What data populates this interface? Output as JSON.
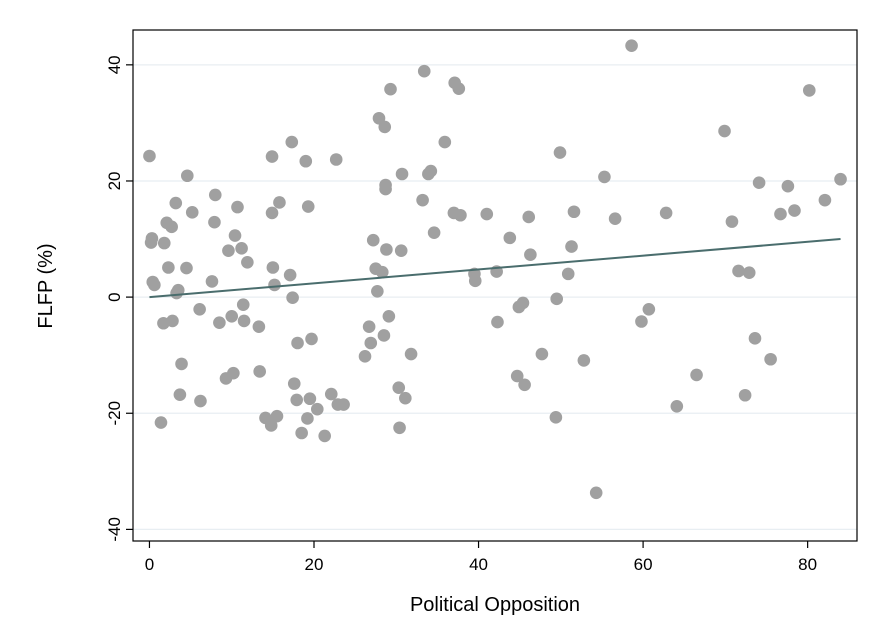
{
  "chart_data": {
    "type": "scatter",
    "title": "",
    "xlabel": "Political Opposition",
    "ylabel": "FLFP (%)",
    "xlim": [
      -2,
      86
    ],
    "ylim": [
      -42,
      46
    ],
    "x_ticks": [
      0,
      20,
      40,
      60,
      80
    ],
    "y_ticks": [
      -40,
      -20,
      0,
      20,
      40
    ],
    "grid": true,
    "colors": {
      "marker": "#a0a0a0",
      "fit_line": "#4a6d6d",
      "grid": "#e8eef2",
      "frame": "#000000"
    },
    "fit_line": {
      "x": [
        0,
        84
      ],
      "y": [
        0,
        10
      ]
    },
    "points": [
      [
        0,
        24.3
      ],
      [
        0.2,
        9.4
      ],
      [
        0.3,
        10.1
      ],
      [
        0.4,
        2.6
      ],
      [
        0.6,
        2.1
      ],
      [
        1.4,
        -21.6
      ],
      [
        1.7,
        -4.5
      ],
      [
        1.8,
        9.3
      ],
      [
        2.1,
        12.8
      ],
      [
        2.3,
        5.1
      ],
      [
        2.7,
        12.1
      ],
      [
        2.8,
        -4.1
      ],
      [
        3.2,
        16.2
      ],
      [
        3.3,
        0.7
      ],
      [
        3.5,
        1.2
      ],
      [
        3.7,
        -16.8
      ],
      [
        3.9,
        -11.5
      ],
      [
        4.5,
        5.0
      ],
      [
        4.6,
        20.9
      ],
      [
        5.2,
        14.6
      ],
      [
        6.1,
        -2.1
      ],
      [
        6.2,
        -17.9
      ],
      [
        7.6,
        2.7
      ],
      [
        7.9,
        12.9
      ],
      [
        8.0,
        17.6
      ],
      [
        8.5,
        -4.4
      ],
      [
        9.3,
        -14.0
      ],
      [
        9.6,
        8.0
      ],
      [
        10.0,
        -3.3
      ],
      [
        10.2,
        -13.1
      ],
      [
        10.4,
        10.6
      ],
      [
        10.7,
        15.5
      ],
      [
        11.2,
        8.4
      ],
      [
        11.4,
        -1.3
      ],
      [
        11.5,
        -4.1
      ],
      [
        11.9,
        6.0
      ],
      [
        13.3,
        -5.1
      ],
      [
        13.4,
        -12.8
      ],
      [
        14.1,
        -20.8
      ],
      [
        14.8,
        -22.1
      ],
      [
        14.9,
        24.2
      ],
      [
        14.9,
        14.5
      ],
      [
        15.0,
        5.1
      ],
      [
        15.2,
        2.1
      ],
      [
        15.5,
        -20.5
      ],
      [
        15.8,
        16.3
      ],
      [
        17.1,
        3.8
      ],
      [
        17.3,
        26.7
      ],
      [
        17.4,
        -0.1
      ],
      [
        17.6,
        -14.9
      ],
      [
        17.9,
        -17.7
      ],
      [
        18.0,
        -7.9
      ],
      [
        18.5,
        -23.4
      ],
      [
        19.0,
        23.4
      ],
      [
        19.2,
        -20.9
      ],
      [
        19.3,
        15.6
      ],
      [
        19.5,
        -17.5
      ],
      [
        19.7,
        -7.2
      ],
      [
        20.4,
        -19.3
      ],
      [
        21.3,
        -23.9
      ],
      [
        22.1,
        -16.7
      ],
      [
        22.7,
        23.7
      ],
      [
        22.9,
        -18.5
      ],
      [
        23.6,
        -18.5
      ],
      [
        26.2,
        -10.2
      ],
      [
        26.7,
        -5.1
      ],
      [
        26.9,
        -7.9
      ],
      [
        27.2,
        9.8
      ],
      [
        27.5,
        4.9
      ],
      [
        27.7,
        1.0
      ],
      [
        27.9,
        30.8
      ],
      [
        28.3,
        4.3
      ],
      [
        28.5,
        -6.6
      ],
      [
        28.6,
        29.3
      ],
      [
        28.7,
        19.3
      ],
      [
        28.7,
        18.6
      ],
      [
        28.8,
        8.2
      ],
      [
        29.1,
        -3.3
      ],
      [
        29.3,
        35.8
      ],
      [
        30.3,
        -15.6
      ],
      [
        30.4,
        -22.5
      ],
      [
        30.6,
        8.0
      ],
      [
        30.7,
        21.2
      ],
      [
        31.1,
        -17.4
      ],
      [
        31.8,
        -9.8
      ],
      [
        33.2,
        16.7
      ],
      [
        33.4,
        38.9
      ],
      [
        33.9,
        21.2
      ],
      [
        34.2,
        21.7
      ],
      [
        34.6,
        11.1
      ],
      [
        35.9,
        26.7
      ],
      [
        37.0,
        14.5
      ],
      [
        37.1,
        36.9
      ],
      [
        37.6,
        35.9
      ],
      [
        37.8,
        14.1
      ],
      [
        39.5,
        4.0
      ],
      [
        39.6,
        2.8
      ],
      [
        41.0,
        14.3
      ],
      [
        42.2,
        4.4
      ],
      [
        42.3,
        -4.3
      ],
      [
        43.8,
        10.2
      ],
      [
        44.7,
        -13.6
      ],
      [
        44.9,
        -1.7
      ],
      [
        45.4,
        -1.0
      ],
      [
        45.6,
        -15.1
      ],
      [
        46.1,
        13.8
      ],
      [
        46.3,
        7.3
      ],
      [
        47.7,
        -9.8
      ],
      [
        49.4,
        -20.7
      ],
      [
        49.5,
        -0.3
      ],
      [
        49.9,
        24.9
      ],
      [
        50.9,
        4.0
      ],
      [
        51.3,
        8.7
      ],
      [
        51.6,
        14.7
      ],
      [
        52.8,
        -10.9
      ],
      [
        54.3,
        -33.7
      ],
      [
        55.3,
        20.7
      ],
      [
        56.6,
        13.5
      ],
      [
        58.6,
        43.3
      ],
      [
        59.8,
        -4.2
      ],
      [
        60.7,
        -2.1
      ],
      [
        62.8,
        14.5
      ],
      [
        64.1,
        -18.8
      ],
      [
        66.5,
        -13.4
      ],
      [
        69.9,
        28.6
      ],
      [
        70.8,
        13.0
      ],
      [
        71.6,
        4.5
      ],
      [
        72.4,
        -16.9
      ],
      [
        72.9,
        4.2
      ],
      [
        73.6,
        -7.1
      ],
      [
        74.1,
        19.7
      ],
      [
        75.5,
        -10.7
      ],
      [
        76.7,
        14.3
      ],
      [
        77.6,
        19.1
      ],
      [
        78.4,
        14.9
      ],
      [
        80.2,
        35.6
      ],
      [
        82.1,
        16.7
      ],
      [
        84.0,
        20.3
      ]
    ]
  }
}
